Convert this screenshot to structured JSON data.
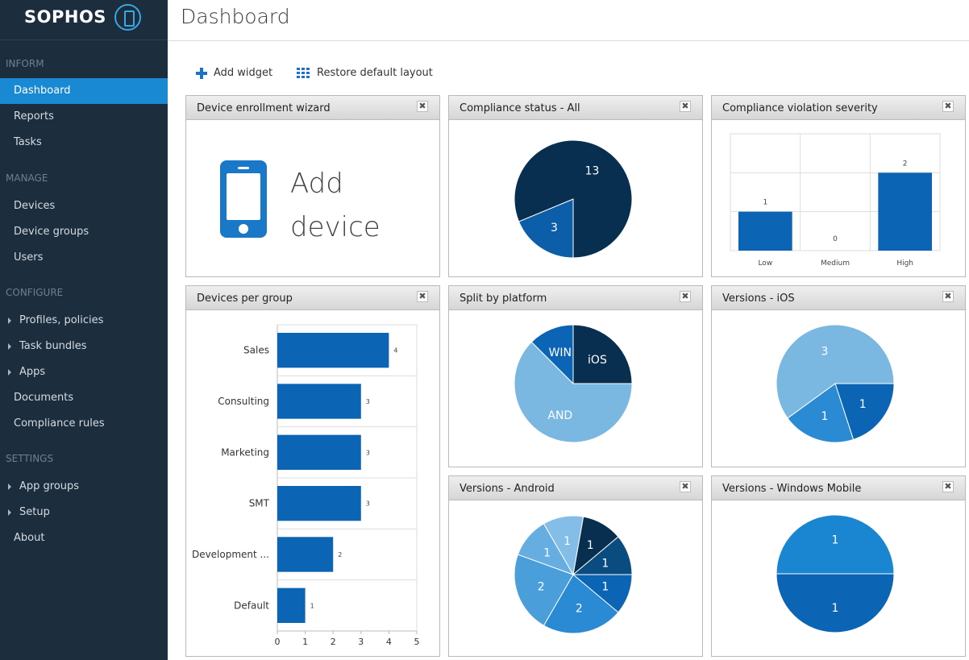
{
  "brand": {
    "name": "SOPHOS",
    "accent": "#1a89d4",
    "sidebar_bg": "#1c2d3d"
  },
  "header": {
    "title": "Dashboard"
  },
  "sidebar": {
    "sections": [
      {
        "title": "INFORM",
        "items": [
          {
            "label": "Dashboard",
            "active": true,
            "expandable": false
          },
          {
            "label": "Reports",
            "active": false,
            "expandable": false
          },
          {
            "label": "Tasks",
            "active": false,
            "expandable": false
          }
        ]
      },
      {
        "title": "MANAGE",
        "items": [
          {
            "label": "Devices",
            "active": false,
            "expandable": false
          },
          {
            "label": "Device groups",
            "active": false,
            "expandable": false
          },
          {
            "label": "Users",
            "active": false,
            "expandable": false
          }
        ]
      },
      {
        "title": "CONFIGURE",
        "items": [
          {
            "label": "Profiles, policies",
            "active": false,
            "expandable": true
          },
          {
            "label": "Task bundles",
            "active": false,
            "expandable": true
          },
          {
            "label": "Apps",
            "active": false,
            "expandable": true
          },
          {
            "label": "Documents",
            "active": false,
            "expandable": false
          },
          {
            "label": "Compliance rules",
            "active": false,
            "expandable": false
          }
        ]
      },
      {
        "title": "SETTINGS",
        "items": [
          {
            "label": "App groups",
            "active": false,
            "expandable": true
          },
          {
            "label": "Setup",
            "active": false,
            "expandable": true
          },
          {
            "label": "About",
            "active": false,
            "expandable": false
          }
        ]
      }
    ]
  },
  "toolbar": {
    "add_widget": "Add widget",
    "restore_layout": "Restore default layout"
  },
  "widgets": {
    "enrollment": {
      "title": "Device enrollment wizard",
      "line1": "Add",
      "line2": "device"
    },
    "compliance_status": {
      "title": "Compliance status - All"
    },
    "violation_severity": {
      "title": "Compliance violation severity"
    },
    "devices_per_group": {
      "title": "Devices per group"
    },
    "split_platform": {
      "title": "Split by platform"
    },
    "versions_ios": {
      "title": "Versions - iOS"
    },
    "versions_android": {
      "title": "Versions - Android"
    },
    "versions_windows": {
      "title": "Versions - Windows Mobile"
    },
    "close_glyph": "✖"
  },
  "chart_data": [
    {
      "id": "compliance_status",
      "type": "pie",
      "start_angle": 90,
      "slices": [
        {
          "label": "3",
          "value": 3,
          "color": "#0c5ea8"
        },
        {
          "label": "13",
          "value": 13,
          "color": "#082f4f"
        }
      ]
    },
    {
      "id": "violation_severity",
      "type": "bar",
      "categories": [
        "Low",
        "Medium",
        "High"
      ],
      "values": [
        1,
        0,
        2
      ],
      "ylim": [
        0,
        3
      ],
      "color": "#0c65b4",
      "grid": true
    },
    {
      "id": "devices_per_group",
      "type": "bar",
      "orientation": "horizontal",
      "categories": [
        "Sales",
        "Consulting",
        "Marketing",
        "SMT",
        "Development ...",
        "Default"
      ],
      "values": [
        4,
        3,
        3,
        3,
        2,
        1
      ],
      "xlim": [
        0,
        5
      ],
      "xticks": [
        0,
        1,
        2,
        3,
        4,
        5
      ],
      "color": "#0c65b4",
      "grid": true
    },
    {
      "id": "split_platform",
      "type": "pie",
      "start_angle": 0,
      "slices": [
        {
          "label": "AND",
          "value": 10,
          "color": "#7ab7e1"
        },
        {
          "label": "WIN",
          "value": 2,
          "color": "#0c65b4"
        },
        {
          "label": "iOS",
          "value": 4,
          "color": "#082f4f"
        }
      ]
    },
    {
      "id": "versions_ios",
      "type": "pie",
      "start_angle": 0,
      "slices": [
        {
          "label": "1",
          "value": 1,
          "color": "#0c65b4"
        },
        {
          "label": "1",
          "value": 1,
          "color": "#2a8ad4"
        },
        {
          "label": "3",
          "value": 3,
          "color": "#7ab7e1"
        }
      ]
    },
    {
      "id": "versions_android",
      "type": "pie",
      "start_angle": 0,
      "slices": [
        {
          "label": "1",
          "value": 1,
          "color": "#0c65b4"
        },
        {
          "label": "2",
          "value": 2,
          "color": "#2a8ad4"
        },
        {
          "label": "2",
          "value": 2,
          "color": "#4a9fdb"
        },
        {
          "label": "1",
          "value": 1,
          "color": "#66ade2"
        },
        {
          "label": "1",
          "value": 1,
          "color": "#84bde7"
        },
        {
          "label": "1",
          "value": 1,
          "color": "#082f4f"
        },
        {
          "label": "1",
          "value": 1,
          "color": "#0a4b80"
        }
      ]
    },
    {
      "id": "versions_windows",
      "type": "pie",
      "start_angle": 0,
      "slices": [
        {
          "label": "1",
          "value": 1,
          "color": "#0c65b4"
        },
        {
          "label": "1",
          "value": 1,
          "color": "#1a85d0"
        }
      ]
    }
  ]
}
